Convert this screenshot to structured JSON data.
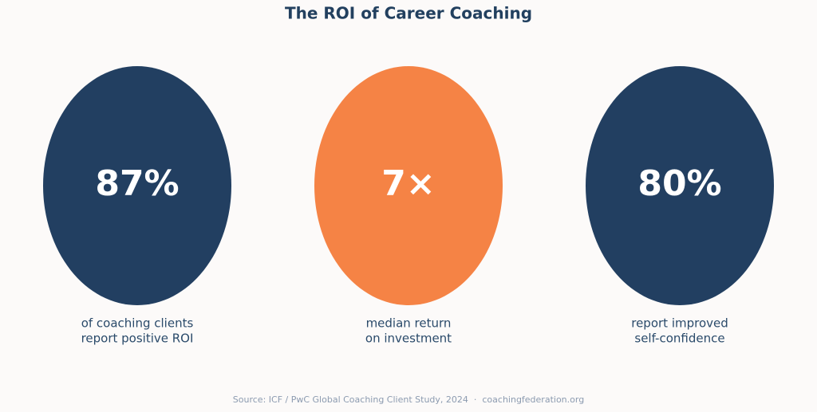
{
  "title": "The ROI of Career Coaching",
  "stats": [
    {
      "value": "87%",
      "label": [
        "of coaching clients",
        "report positive ROI"
      ],
      "color": "#223f61"
    },
    {
      "value": "7×",
      "label": [
        "median return",
        "on investment"
      ],
      "color": "#f58345"
    },
    {
      "value": "80%",
      "label": [
        "report improved",
        "self-confidence"
      ],
      "color": "#223f61"
    }
  ],
  "footer": "Source: ICF / PwC Global Coaching Client Study, 2024  ·  coachingfederation.org"
}
